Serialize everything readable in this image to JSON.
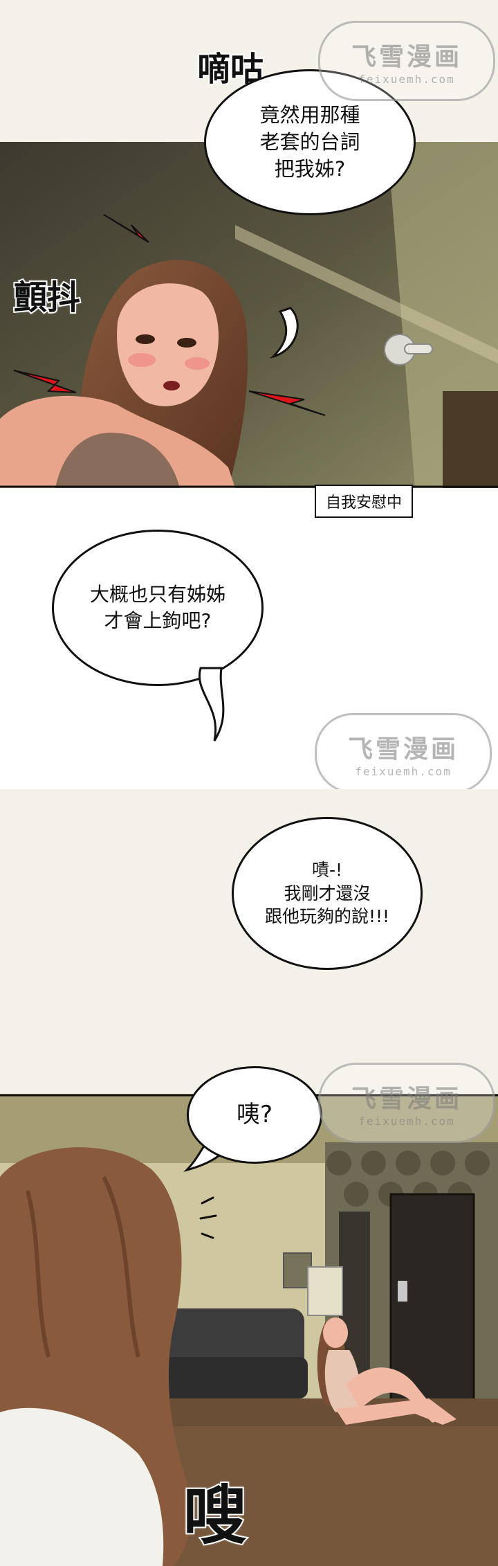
{
  "watermark": {
    "title": "飞雪漫画",
    "subtitle": "feixuemh.com"
  },
  "panel1": {
    "sfx_top": "嘀咕",
    "sfx_side": "顫抖",
    "bubble": "竟然用那種\n老套的台詞\n把我姊?",
    "caption": "自我安慰中"
  },
  "panel2": {
    "bubble": "大概也只有姊姊\n才會上鉤吧?"
  },
  "panel3": {
    "bubble": "嘖-!\n我剛才還沒\n跟他玩夠的說!!!"
  },
  "panel4": {
    "bubble": "咦?",
    "sfx_bottom": "嗖"
  },
  "colors": {
    "cream": "#f4f1e9",
    "hair": "#7a4d34",
    "skin": "#f1b9a4",
    "red_mark": "#e0141b"
  }
}
